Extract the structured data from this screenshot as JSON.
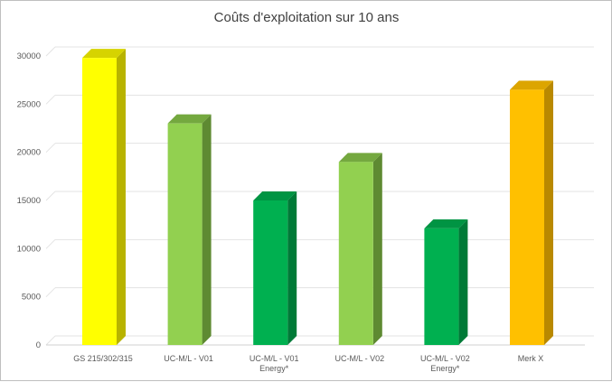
{
  "chart_data": {
    "type": "bar",
    "title": "Coûts d'exploitation sur 10 ans",
    "xlabel": "",
    "ylabel": "",
    "ylim": [
      0,
      30000
    ],
    "yticks": [
      0,
      5000,
      10000,
      15000,
      20000,
      25000,
      30000
    ],
    "grid": true,
    "style": "3d-column",
    "categories": [
      [
        "GS 215/302/315"
      ],
      [
        "UC-M/L - V01"
      ],
      [
        "UC-M/L - V01",
        "Energy*"
      ],
      [
        "UC-M/L - V02"
      ],
      [
        "UC-M/L - V02",
        "Energy*"
      ],
      [
        "Merk X"
      ]
    ],
    "values": [
      29800,
      23000,
      15000,
      19000,
      12100,
      26500
    ],
    "colors": [
      {
        "front": "#ffff00",
        "side": "#b8b300",
        "top": "#d6d300"
      },
      {
        "front": "#92d050",
        "side": "#5e8a32",
        "top": "#74a83f"
      },
      {
        "front": "#00b050",
        "side": "#007a37",
        "top": "#009443"
      },
      {
        "front": "#92d050",
        "side": "#5e8a32",
        "top": "#74a83f"
      },
      {
        "front": "#00b050",
        "side": "#007a37",
        "top": "#009443"
      },
      {
        "front": "#ffc000",
        "side": "#b98900",
        "top": "#dca500"
      }
    ]
  }
}
